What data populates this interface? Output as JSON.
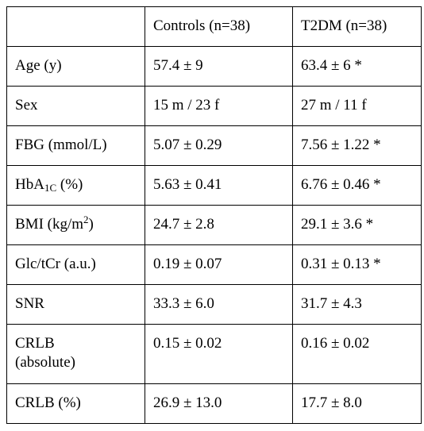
{
  "table": {
    "header": [
      "",
      "Controls (n=38)",
      "T2DM (n=38)"
    ],
    "rows": [
      {
        "label": "Age (y)",
        "controls": "57.4 ± 9",
        "t2dm": "63.4 ± 6 *"
      },
      {
        "label": "Sex",
        "controls": "15 m / 23 f",
        "t2dm": "27 m / 11 f"
      },
      {
        "label": "FBG (mmol/L)",
        "controls": "5.07 ± 0.29",
        "t2dm": "7.56 ± 1.22 *"
      },
      {
        "label_main": "HbA",
        "label_sub": "1C",
        "label_rest": " (%)",
        "controls": "5.63 ± 0.41",
        "t2dm": "6.76 ± 0.46 *"
      },
      {
        "label_main": "BMI (kg/m",
        "label_sup": "2",
        "label_rest": ")",
        "controls": "24.7 ± 2.8",
        "t2dm": "29.1 ± 3.6 *"
      },
      {
        "label": "Glc/tCr (a.u.)",
        "controls": "0.19 ± 0.07",
        "t2dm": "0.31 ± 0.13 *"
      },
      {
        "label": "SNR",
        "controls": "33.3 ± 6.0",
        "t2dm": "31.7 ± 4.3"
      },
      {
        "label_line1": "CRLB",
        "label_line2": "(absolute)",
        "controls": "0.15 ± 0.02",
        "t2dm": "0.16 ± 0.02"
      },
      {
        "label": "CRLB (%)",
        "controls": "26.9 ± 13.0",
        "t2dm": "17.7 ± 8.0"
      }
    ]
  }
}
